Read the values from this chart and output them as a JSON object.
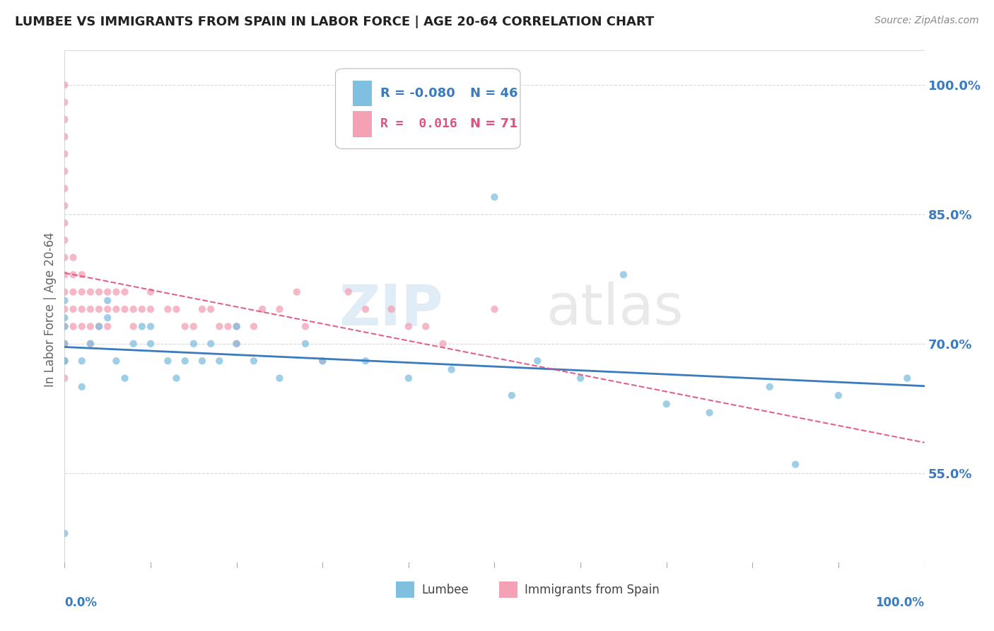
{
  "title": "LUMBEE VS IMMIGRANTS FROM SPAIN IN LABOR FORCE | AGE 20-64 CORRELATION CHART",
  "source": "Source: ZipAtlas.com",
  "ylabel": "In Labor Force | Age 20-64",
  "watermark_zip": "ZIP",
  "watermark_atlas": "atlas",
  "xlim": [
    0.0,
    1.0
  ],
  "ylim": [
    0.44,
    1.04
  ],
  "yticks": [
    0.55,
    0.7,
    0.85,
    1.0
  ],
  "ytick_labels": [
    "55.0%",
    "70.0%",
    "85.0%",
    "100.0%"
  ],
  "color_blue": "#7fbfdf",
  "color_pink": "#f4a0b5",
  "color_blue_line": "#3a7bbf",
  "color_pink_line": "#e05080",
  "lumbee_x": [
    0.0,
    0.0,
    0.0,
    0.0,
    0.0,
    0.0,
    0.0,
    0.02,
    0.02,
    0.03,
    0.04,
    0.05,
    0.05,
    0.06,
    0.07,
    0.08,
    0.09,
    0.1,
    0.1,
    0.12,
    0.13,
    0.14,
    0.15,
    0.16,
    0.17,
    0.18,
    0.2,
    0.2,
    0.22,
    0.25,
    0.28,
    0.3,
    0.35,
    0.4,
    0.45,
    0.5,
    0.52,
    0.55,
    0.6,
    0.65,
    0.7,
    0.75,
    0.82,
    0.85,
    0.9,
    0.98
  ],
  "lumbee_y": [
    0.68,
    0.7,
    0.72,
    0.73,
    0.75,
    0.68,
    0.48,
    0.65,
    0.68,
    0.7,
    0.72,
    0.73,
    0.75,
    0.68,
    0.66,
    0.7,
    0.72,
    0.7,
    0.72,
    0.68,
    0.66,
    0.68,
    0.7,
    0.68,
    0.7,
    0.68,
    0.72,
    0.7,
    0.68,
    0.66,
    0.7,
    0.68,
    0.68,
    0.66,
    0.67,
    0.87,
    0.64,
    0.68,
    0.66,
    0.78,
    0.63,
    0.62,
    0.65,
    0.56,
    0.64,
    0.66
  ],
  "spain_x": [
    0.0,
    0.0,
    0.0,
    0.0,
    0.0,
    0.0,
    0.0,
    0.0,
    0.0,
    0.0,
    0.0,
    0.0,
    0.0,
    0.0,
    0.0,
    0.0,
    0.0,
    0.0,
    0.01,
    0.01,
    0.01,
    0.01,
    0.01,
    0.02,
    0.02,
    0.02,
    0.02,
    0.03,
    0.03,
    0.03,
    0.03,
    0.04,
    0.04,
    0.04,
    0.05,
    0.05,
    0.05,
    0.06,
    0.06,
    0.07,
    0.07,
    0.08,
    0.08,
    0.09,
    0.1,
    0.1,
    0.12,
    0.13,
    0.14,
    0.15,
    0.16,
    0.17,
    0.18,
    0.19,
    0.2,
    0.2,
    0.22,
    0.23,
    0.25,
    0.27,
    0.28,
    0.3,
    0.33,
    0.35,
    0.38,
    0.4,
    0.42,
    0.44,
    0.5
  ],
  "spain_y": [
    0.72,
    0.74,
    0.76,
    0.78,
    0.8,
    0.82,
    0.84,
    0.86,
    0.88,
    0.9,
    0.92,
    0.94,
    0.96,
    0.98,
    1.0,
    0.7,
    0.68,
    0.66,
    0.8,
    0.78,
    0.76,
    0.74,
    0.72,
    0.78,
    0.76,
    0.74,
    0.72,
    0.76,
    0.74,
    0.72,
    0.7,
    0.76,
    0.74,
    0.72,
    0.76,
    0.74,
    0.72,
    0.76,
    0.74,
    0.76,
    0.74,
    0.74,
    0.72,
    0.74,
    0.76,
    0.74,
    0.74,
    0.74,
    0.72,
    0.72,
    0.74,
    0.74,
    0.72,
    0.72,
    0.72,
    0.7,
    0.72,
    0.74,
    0.74,
    0.76,
    0.72,
    0.68,
    0.76,
    0.74,
    0.74,
    0.72,
    0.72,
    0.7,
    0.74
  ]
}
